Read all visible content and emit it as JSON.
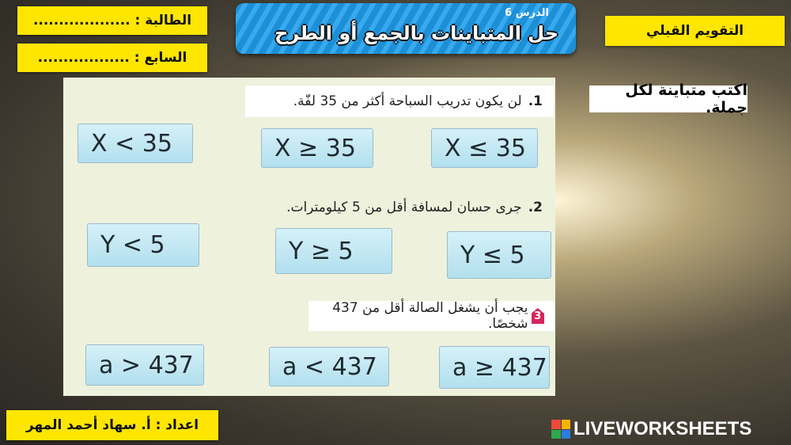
{
  "header": {
    "student_label": "الطالبة : ...................",
    "grade_label": "السابع : ..................",
    "lesson": "الدرس 6",
    "title": "حل المتباينات بالجمع أو الطرح",
    "section": "التقويم القبلي"
  },
  "instruction": "اكتب متباينة لكل جملة.",
  "questions": [
    {
      "number": "1.",
      "text": "لن يكون تدريب السباحة أكثر من 35 لفّة.",
      "options": [
        "X < 35",
        "X ≥ 35",
        "X ≤ 35"
      ]
    },
    {
      "number": "2.",
      "text": "جرى حسان لمسافة أقل من 5 كيلومترات.",
      "options": [
        "Y < 5",
        "Y ≥ 5",
        "Y ≤ 5"
      ]
    },
    {
      "number": "3",
      "text": "يجب أن يشغل الصالة أقل من 437 شخصًا.",
      "options": [
        "a > 437",
        "a < 437",
        "a ≥ 437"
      ]
    }
  ],
  "footer": {
    "author": "اعداد : أ. سهاد أحمد المهر",
    "brand": "LIVEWORKSHEETS"
  },
  "colors": {
    "yellow": "#ffe600",
    "banner": "#1d8fd6",
    "option_bg": "#c4e8f3",
    "panel": "#eef1dc"
  }
}
